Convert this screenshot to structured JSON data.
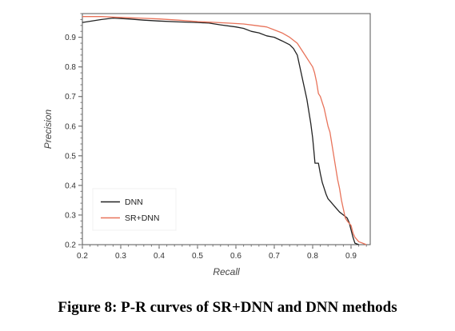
{
  "caption": "Figure 8: P-R curves of SR+DNN and DNN methods",
  "chart_data": {
    "type": "line",
    "xlabel": "Recall",
    "ylabel": "Precision",
    "xlim": [
      0.2,
      0.95
    ],
    "ylim": [
      0.2,
      0.98
    ],
    "xticks": [
      "0.2",
      "0.3",
      "0.4",
      "0.5",
      "0.6",
      "0.7",
      "0.8",
      "0.9"
    ],
    "yticks": [
      "0.2",
      "0.3",
      "0.4",
      "0.5",
      "0.6",
      "0.7",
      "0.8",
      "0.9"
    ],
    "grid": false,
    "legend_position": "bottom-left",
    "series": [
      {
        "name": "DNN",
        "color": "#222222",
        "points": [
          [
            0.2,
            0.95
          ],
          [
            0.25,
            0.96
          ],
          [
            0.28,
            0.965
          ],
          [
            0.32,
            0.962
          ],
          [
            0.36,
            0.958
          ],
          [
            0.4,
            0.955
          ],
          [
            0.45,
            0.952
          ],
          [
            0.5,
            0.95
          ],
          [
            0.53,
            0.948
          ],
          [
            0.56,
            0.942
          ],
          [
            0.6,
            0.935
          ],
          [
            0.62,
            0.93
          ],
          [
            0.64,
            0.92
          ],
          [
            0.66,
            0.915
          ],
          [
            0.68,
            0.905
          ],
          [
            0.7,
            0.9
          ],
          [
            0.72,
            0.888
          ],
          [
            0.74,
            0.875
          ],
          [
            0.75,
            0.862
          ],
          [
            0.76,
            0.84
          ],
          [
            0.765,
            0.81
          ],
          [
            0.77,
            0.78
          ],
          [
            0.775,
            0.75
          ],
          [
            0.78,
            0.72
          ],
          [
            0.785,
            0.69
          ],
          [
            0.79,
            0.65
          ],
          [
            0.795,
            0.61
          ],
          [
            0.8,
            0.56
          ],
          [
            0.803,
            0.52
          ],
          [
            0.806,
            0.475
          ],
          [
            0.815,
            0.475
          ],
          [
            0.82,
            0.44
          ],
          [
            0.825,
            0.41
          ],
          [
            0.83,
            0.39
          ],
          [
            0.835,
            0.37
          ],
          [
            0.84,
            0.355
          ],
          [
            0.85,
            0.34
          ],
          [
            0.86,
            0.325
          ],
          [
            0.87,
            0.31
          ],
          [
            0.88,
            0.3
          ],
          [
            0.89,
            0.29
          ],
          [
            0.895,
            0.275
          ],
          [
            0.9,
            0.25
          ],
          [
            0.905,
            0.225
          ],
          [
            0.91,
            0.205
          ],
          [
            0.92,
            0.2
          ]
        ]
      },
      {
        "name": "SR+DNN",
        "color": "#e8735a",
        "points": [
          [
            0.2,
            0.97
          ],
          [
            0.25,
            0.97
          ],
          [
            0.28,
            0.968
          ],
          [
            0.32,
            0.966
          ],
          [
            0.36,
            0.964
          ],
          [
            0.4,
            0.962
          ],
          [
            0.45,
            0.958
          ],
          [
            0.5,
            0.953
          ],
          [
            0.55,
            0.95
          ],
          [
            0.58,
            0.948
          ],
          [
            0.62,
            0.945
          ],
          [
            0.65,
            0.94
          ],
          [
            0.68,
            0.935
          ],
          [
            0.7,
            0.925
          ],
          [
            0.72,
            0.915
          ],
          [
            0.74,
            0.9
          ],
          [
            0.76,
            0.88
          ],
          [
            0.77,
            0.86
          ],
          [
            0.78,
            0.84
          ],
          [
            0.79,
            0.82
          ],
          [
            0.8,
            0.8
          ],
          [
            0.805,
            0.78
          ],
          [
            0.81,
            0.75
          ],
          [
            0.815,
            0.71
          ],
          [
            0.82,
            0.7
          ],
          [
            0.825,
            0.68
          ],
          [
            0.83,
            0.66
          ],
          [
            0.835,
            0.63
          ],
          [
            0.84,
            0.6
          ],
          [
            0.845,
            0.58
          ],
          [
            0.85,
            0.54
          ],
          [
            0.855,
            0.5
          ],
          [
            0.86,
            0.46
          ],
          [
            0.865,
            0.42
          ],
          [
            0.87,
            0.39
          ],
          [
            0.875,
            0.35
          ],
          [
            0.88,
            0.32
          ],
          [
            0.885,
            0.29
          ],
          [
            0.89,
            0.28
          ],
          [
            0.9,
            0.265
          ],
          [
            0.905,
            0.24
          ],
          [
            0.91,
            0.225
          ],
          [
            0.92,
            0.21
          ],
          [
            0.93,
            0.205
          ],
          [
            0.94,
            0.2
          ]
        ]
      }
    ]
  }
}
